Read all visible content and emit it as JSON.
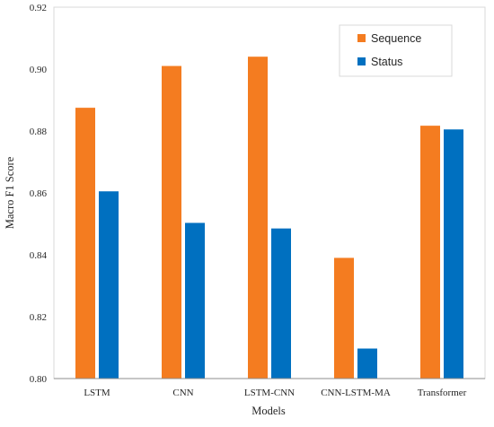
{
  "chart_data": {
    "type": "bar",
    "categories": [
      "LSTM",
      "CNN",
      "LSTM-CNN",
      "CNN-LSTM-MA",
      "Transformer"
    ],
    "series": [
      {
        "name": "Sequence",
        "color": "#F47C20",
        "values": [
          0.8875,
          0.901,
          0.904,
          0.839,
          0.8817
        ]
      },
      {
        "name": "Status",
        "color": "#0070C0",
        "values": [
          0.8605,
          0.8503,
          0.8485,
          0.8097,
          0.8805
        ]
      }
    ],
    "xlabel": "Models",
    "ylabel": "Macro F1 Score",
    "ylim": [
      0.8,
      0.92
    ],
    "yticks": [
      "0.80",
      "0.82",
      "0.84",
      "0.86",
      "0.88",
      "0.90",
      "0.92"
    ],
    "grid": false,
    "legend_position": "top-right"
  }
}
